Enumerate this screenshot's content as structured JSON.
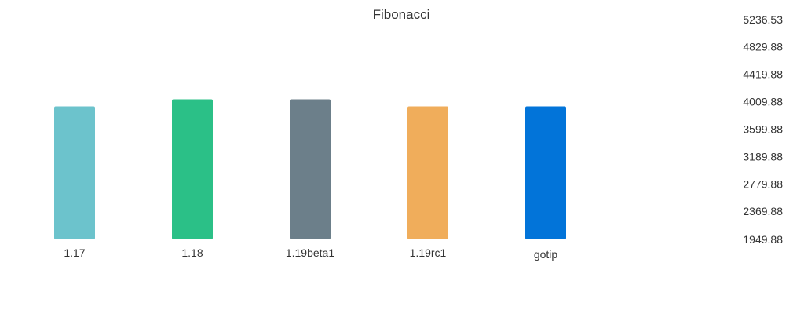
{
  "chart_data": {
    "type": "bar",
    "title": "Fibonacci",
    "xlabel": "",
    "ylabel": "",
    "categories": [
      "1.17",
      "1.18",
      "1.19beta1",
      "1.19rc1",
      "gotip"
    ],
    "values": [
      3940,
      4045,
      4045,
      3940,
      3940
    ],
    "colors": [
      "#6cc3cc",
      "#2bc087",
      "#6c7f8a",
      "#f0ad5b",
      "#0274d9"
    ],
    "y_ticks": [
      "1949.88",
      "2369.88",
      "2779.88",
      "3189.88",
      "3599.88",
      "4009.88",
      "4419.88",
      "4829.88",
      "5236.53"
    ],
    "ylim": [
      1949.88,
      5236.53
    ],
    "grid": false,
    "legend": "none",
    "y_axis_position": "right"
  }
}
